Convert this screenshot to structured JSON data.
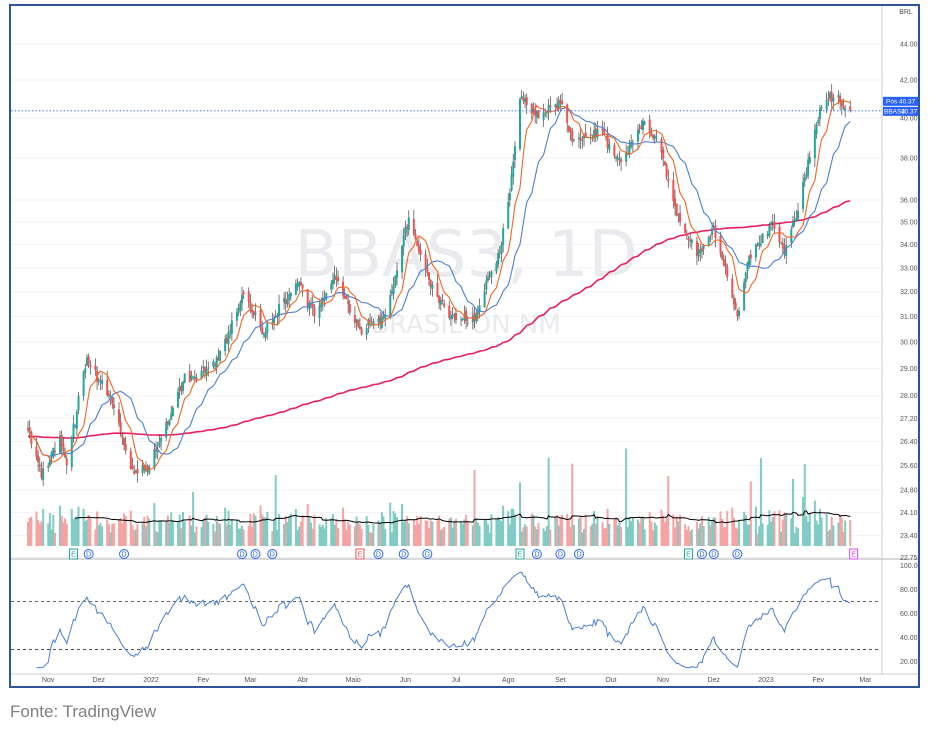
{
  "source": "Fonte: TradingView",
  "chart_data": {
    "type": "candlestick",
    "watermark": {
      "symbol": "BBAS3, 1D",
      "name": "BRASIL ON NM"
    },
    "price_scale": {
      "label": "BRL",
      "ticks": [
        "22.75",
        "23.40",
        "24.10",
        "24.80",
        "25.60",
        "26.40",
        "27.20",
        "28.00",
        "29.00",
        "30.00",
        "31.00",
        "32.00",
        "33.00",
        "34.00",
        "35.00",
        "36.00",
        "38.00",
        "40.00",
        "42.00",
        "44.00"
      ],
      "log_scale": true
    },
    "last_price": {
      "pos_label": "Pós",
      "pos_value": "40.37",
      "symbol_label": "BBAS3",
      "value": "40.37",
      "color": "#2962ff"
    },
    "x_labels": [
      "Nov",
      "Dez",
      "2022",
      "Fev",
      "Mar",
      "Abr",
      "Maio",
      "Jun",
      "Jul",
      "Ago",
      "Set",
      "Out",
      "Nov",
      "Dez",
      "2023",
      "Fev",
      "Mar"
    ],
    "anchors": [
      {
        "date": "2021-10-20",
        "close": 26.8
      },
      {
        "date": "2021-10-28",
        "close": 25.2
      },
      {
        "date": "2021-11-08",
        "close": 26.6
      },
      {
        "date": "2021-11-12",
        "close": 25.6
      },
      {
        "date": "2021-11-24",
        "close": 29.4
      },
      {
        "date": "2021-12-08",
        "close": 28.0
      },
      {
        "date": "2021-12-20",
        "close": 25.5
      },
      {
        "date": "2021-12-30",
        "close": 25.4
      },
      {
        "date": "2022-01-20",
        "close": 28.5
      },
      {
        "date": "2022-02-10",
        "close": 29.3
      },
      {
        "date": "2022-02-25",
        "close": 31.9
      },
      {
        "date": "2022-03-08",
        "close": 30.3
      },
      {
        "date": "2022-03-30",
        "close": 32.4
      },
      {
        "date": "2022-04-08",
        "close": 31.0
      },
      {
        "date": "2022-04-20",
        "close": 32.7
      },
      {
        "date": "2022-05-05",
        "close": 30.5
      },
      {
        "date": "2022-05-20",
        "close": 31.0
      },
      {
        "date": "2022-06-03",
        "close": 35.2
      },
      {
        "date": "2022-06-15",
        "close": 32.5
      },
      {
        "date": "2022-06-28",
        "close": 31.0
      },
      {
        "date": "2022-07-12",
        "close": 30.8
      },
      {
        "date": "2022-07-28",
        "close": 34.0
      },
      {
        "date": "2022-08-03",
        "close": 37.2
      },
      {
        "date": "2022-08-08",
        "close": 41.0
      },
      {
        "date": "2022-08-20",
        "close": 40.0
      },
      {
        "date": "2022-09-01",
        "close": 40.8
      },
      {
        "date": "2022-09-08",
        "close": 38.8
      },
      {
        "date": "2022-09-25",
        "close": 39.3
      },
      {
        "date": "2022-10-07",
        "close": 37.8
      },
      {
        "date": "2022-10-21",
        "close": 39.8
      },
      {
        "date": "2022-10-28",
        "close": 39.0
      },
      {
        "date": "2022-11-11",
        "close": 35.0
      },
      {
        "date": "2022-11-21",
        "close": 33.5
      },
      {
        "date": "2022-12-01",
        "close": 34.8
      },
      {
        "date": "2022-12-15",
        "close": 31.0
      },
      {
        "date": "2022-12-22",
        "close": 33.5
      },
      {
        "date": "2023-01-05",
        "close": 35.0
      },
      {
        "date": "2023-01-12",
        "close": 33.6
      },
      {
        "date": "2023-01-20",
        "close": 35.5
      },
      {
        "date": "2023-02-02",
        "close": 40.5
      },
      {
        "date": "2023-02-08",
        "close": 41.3
      },
      {
        "date": "2023-02-20",
        "close": 40.37
      }
    ],
    "moving_averages": [
      {
        "period": 9,
        "color": "#f26522"
      },
      {
        "period": 21,
        "color": "#4a7fd4"
      },
      {
        "period": 200,
        "color": "#e91e63"
      }
    ],
    "candle_colors": {
      "up": "#26a69a",
      "down": "#ef5350",
      "wick": "#444444"
    },
    "volume_colors": {
      "up": "#80cbc4",
      "down": "#f5a3a3",
      "ma": "#000000"
    },
    "events": [
      {
        "date": "2021-11-16",
        "label": "E",
        "color": "#26a69a"
      },
      {
        "date": "2021-11-25",
        "label": "D",
        "color": "#2962ff"
      },
      {
        "date": "2021-12-16",
        "label": "D",
        "color": "#2962ff"
      },
      {
        "date": "2022-02-24",
        "label": "D",
        "color": "#2962ff"
      },
      {
        "date": "2022-03-04",
        "label": "D",
        "color": "#2962ff"
      },
      {
        "date": "2022-03-14",
        "label": "D",
        "color": "#2962ff"
      },
      {
        "date": "2022-05-05",
        "label": "E",
        "color": "#ef5350"
      },
      {
        "date": "2022-05-16",
        "label": "D",
        "color": "#2962ff"
      },
      {
        "date": "2022-05-31",
        "label": "D",
        "color": "#2962ff"
      },
      {
        "date": "2022-06-14",
        "label": "D",
        "color": "#2962ff"
      },
      {
        "date": "2022-08-08",
        "label": "E",
        "color": "#26a69a"
      },
      {
        "date": "2022-08-18",
        "label": "D",
        "color": "#2962ff"
      },
      {
        "date": "2022-09-01",
        "label": "D",
        "color": "#2962ff"
      },
      {
        "date": "2022-09-12",
        "label": "D",
        "color": "#2962ff"
      },
      {
        "date": "2022-11-16",
        "label": "E",
        "color": "#26a69a"
      },
      {
        "date": "2022-11-24",
        "label": "D",
        "color": "#2962ff"
      },
      {
        "date": "2022-12-01",
        "label": "D",
        "color": "#2962ff"
      },
      {
        "date": "2022-12-15",
        "label": "D",
        "color": "#2962ff"
      },
      {
        "date": "2023-02-22",
        "label": "E",
        "color": "#e040fb"
      }
    ],
    "oscillator": {
      "type": "line",
      "ticks": [
        "20.00",
        "40.00",
        "60.00",
        "80.00",
        "100.00"
      ],
      "ylim": [
        13,
        102
      ],
      "levels": [
        30,
        70
      ],
      "line_color": "#4a7fd4"
    }
  }
}
